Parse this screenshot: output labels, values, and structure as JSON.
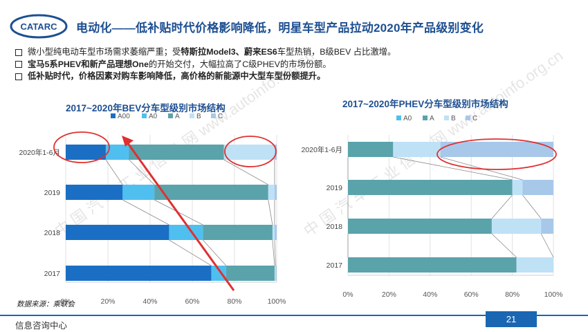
{
  "header": {
    "logo_text": "CATARC",
    "title": "电动化——低补贴时代价格影响降低，明星车型产品拉动2020年产品级别变化"
  },
  "bullets": [
    {
      "parts": [
        {
          "t": "微小型纯电动车型市场需求萎缩严重；受",
          "b": false
        },
        {
          "t": "特斯拉Model3、蔚来ES6",
          "b": true
        },
        {
          "t": "车型热销，B级BEV 占比激增。",
          "b": false
        }
      ]
    },
    {
      "parts": [
        {
          "t": "宝马5系PHEV和新产品理想One",
          "b": true
        },
        {
          "t": "的开始交付，大幅拉高了C级PHEV的市场份额。",
          "b": false
        }
      ]
    },
    {
      "parts": [
        {
          "t": "低补贴时代，价格因素对购车影响降低，高价格的新能源中大型车型份额提升。",
          "b": true
        }
      ]
    }
  ],
  "chart_data": [
    {
      "type": "bar",
      "orientation": "horizontal",
      "stacked": true,
      "percent": true,
      "title": "2017~2020年BEV分车型级别市场结构",
      "categories": [
        "2020年1-6月",
        "2019",
        "2018",
        "2017"
      ],
      "series": [
        {
          "name": "A00",
          "color": "#1a6fc4",
          "values": [
            19,
            27,
            49,
            69
          ]
        },
        {
          "name": "A0",
          "color": "#4fbfef",
          "values": [
            11,
            15,
            16,
            7
          ]
        },
        {
          "name": "A",
          "color": "#5aa3ab",
          "values": [
            45,
            54,
            33,
            23
          ]
        },
        {
          "name": "B",
          "color": "#bfe1f6",
          "values": [
            24,
            3,
            1,
            0.5
          ]
        },
        {
          "name": "C",
          "color": "#a8c8ea",
          "values": [
            1,
            1,
            1,
            0.5
          ]
        }
      ],
      "xlim": [
        0,
        100
      ],
      "xticks": [
        "0%",
        "20%",
        "40%",
        "60%",
        "80%",
        "100%"
      ],
      "legend": "top"
    },
    {
      "type": "bar",
      "orientation": "horizontal",
      "stacked": true,
      "percent": true,
      "title": "2017~2020年PHEV分车型级别市场结构",
      "categories": [
        "2020年1-6月",
        "2019",
        "2018",
        "2017"
      ],
      "series": [
        {
          "name": "A0",
          "color": "#4fbfef",
          "values": [
            0,
            0,
            0,
            0
          ]
        },
        {
          "name": "A",
          "color": "#5aa3ab",
          "values": [
            22,
            80,
            70,
            82
          ]
        },
        {
          "name": "B",
          "color": "#bfe1f6",
          "values": [
            23,
            5,
            24,
            18
          ]
        },
        {
          "name": "C",
          "color": "#a8c8ea",
          "values": [
            55,
            15,
            6,
            0
          ]
        }
      ],
      "xlim": [
        0,
        100
      ],
      "xticks": [
        "0%",
        "20%",
        "40%",
        "60%",
        "80%",
        "100%"
      ],
      "legend": "top"
    }
  ],
  "source": "数据来源：乘联会",
  "footer": {
    "text": "信息咨询中心",
    "page": "21"
  },
  "watermark": "中 国 汽 车 工 业 信 息 网   www.autoinfo.org.cn",
  "colors": {
    "title": "#1d4f91",
    "footer_bar": "#1a66b3",
    "highlight": "#e03030"
  }
}
